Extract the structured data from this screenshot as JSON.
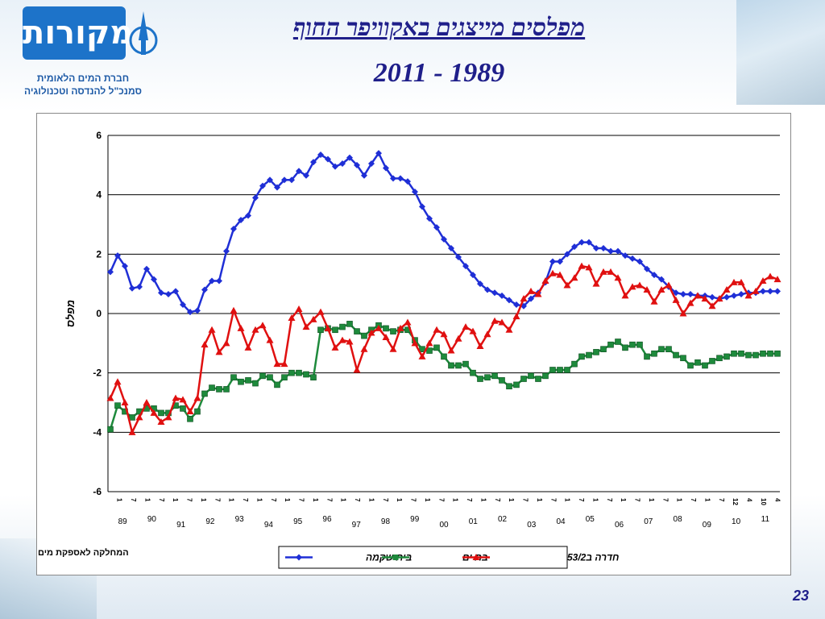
{
  "logo": {
    "name": "מקורות",
    "subtitle_line1": "חברת המים הלאומית",
    "subtitle_line2": "סמנכ\"ל להנדסה וטכנולוגיה"
  },
  "slide": {
    "title": "מפלסים מייצגים באקוויפר החוף",
    "years": "2011 - 1989",
    "department": "המחלקה לאספקת מים",
    "page_number": "23"
  },
  "chart_data": {
    "type": "line",
    "ylabel": "מפלס",
    "ylim": [
      -6,
      6
    ],
    "yticks": [
      "6",
      "4",
      "2",
      "0",
      "-2",
      "-4",
      "-6"
    ],
    "ytick_values": [
      6,
      4,
      2,
      0,
      -2,
      -4,
      -6
    ],
    "grid": true,
    "legend_position": "bottom",
    "x_tick_labels": [
      "1",
      "7",
      "1",
      "7",
      "1",
      "7",
      "1",
      "7",
      "1",
      "7",
      "1",
      "7",
      "1",
      "7",
      "1",
      "7",
      "1",
      "7",
      "1",
      "7",
      "1",
      "7",
      "1",
      "7",
      "1",
      "7",
      "1",
      "7",
      "1",
      "7",
      "1",
      "7",
      "1",
      "7",
      "1",
      "7",
      "1",
      "7",
      "1",
      "7",
      "1",
      "7",
      "1",
      "7",
      "12",
      "4",
      "10",
      "4"
    ],
    "year_labels": [
      "89",
      "90",
      "91",
      "92",
      "93",
      "94",
      "95",
      "96",
      "97",
      "98",
      "99",
      "00",
      "01",
      "02",
      "03",
      "04",
      "05",
      "06",
      "07",
      "08",
      "09",
      "10",
      "11"
    ],
    "series": [
      {
        "name": "בית שקמה",
        "color": "#1f2fd6",
        "marker": "diamond",
        "values": [
          1.4,
          1.95,
          1.6,
          0.85,
          0.9,
          1.5,
          1.15,
          0.7,
          0.65,
          0.75,
          0.3,
          0.05,
          0.1,
          0.8,
          1.1,
          1.1,
          2.1,
          2.85,
          3.15,
          3.3,
          3.9,
          4.3,
          4.5,
          4.25,
          4.5,
          4.5,
          4.8,
          4.65,
          5.1,
          5.35,
          5.2,
          4.95,
          5.05,
          5.25,
          5.0,
          4.65,
          5.05,
          5.4,
          4.9,
          4.55,
          4.55,
          4.45,
          4.1,
          3.6,
          3.2,
          2.9,
          2.5,
          2.2,
          1.9,
          1.6,
          1.3,
          1.0,
          0.8,
          0.7,
          0.6,
          0.45,
          0.3,
          0.25,
          0.5,
          0.7,
          1.05,
          1.75,
          1.75,
          2.0,
          2.25,
          2.4,
          2.4,
          2.2,
          2.2,
          2.1,
          2.1,
          1.95,
          1.85,
          1.75,
          1.5,
          1.3,
          1.15,
          0.9,
          0.7,
          0.65,
          0.65,
          0.6,
          0.6,
          0.55,
          0.5,
          0.55,
          0.6,
          0.65,
          0.7,
          0.7,
          0.75,
          0.75,
          0.75
        ]
      },
      {
        "name": "בת ים",
        "color": "#1e8a3c",
        "marker": "square",
        "values": [
          -3.9,
          -3.1,
          -3.3,
          -3.5,
          -3.3,
          -3.2,
          -3.2,
          -3.35,
          -3.35,
          -3.1,
          -3.2,
          -3.55,
          -3.3,
          -2.7,
          -2.5,
          -2.55,
          -2.55,
          -2.15,
          -2.3,
          -2.25,
          -2.35,
          -2.1,
          -2.15,
          -2.4,
          -2.15,
          -2.0,
          -2.0,
          -2.05,
          -2.15,
          -0.55,
          -0.5,
          -0.55,
          -0.45,
          -0.35,
          -0.6,
          -0.75,
          -0.55,
          -0.4,
          -0.5,
          -0.6,
          -0.55,
          -0.55,
          -0.9,
          -1.2,
          -1.25,
          -1.15,
          -1.45,
          -1.75,
          -1.75,
          -1.7,
          -2.0,
          -2.2,
          -2.15,
          -2.1,
          -2.25,
          -2.45,
          -2.4,
          -2.2,
          -2.1,
          -2.2,
          -2.1,
          -1.9,
          -1.9,
          -1.9,
          -1.7,
          -1.45,
          -1.4,
          -1.3,
          -1.2,
          -1.05,
          -0.95,
          -1.15,
          -1.05,
          -1.05,
          -1.45,
          -1.35,
          -1.2,
          -1.2,
          -1.4,
          -1.5,
          -1.75,
          -1.65,
          -1.75,
          -1.6,
          -1.5,
          -1.45,
          -1.35,
          -1.35,
          -1.4,
          -1.4,
          -1.35,
          -1.35,
          -1.35
        ]
      },
      {
        "name": "חדרה ב53/2",
        "color": "#e01010",
        "marker": "triangle",
        "values": [
          -2.85,
          -2.3,
          -3.0,
          -4.0,
          -3.5,
          -3.0,
          -3.35,
          -3.65,
          -3.5,
          -2.85,
          -2.9,
          -3.3,
          -2.85,
          -1.05,
          -0.55,
          -1.3,
          -1.0,
          0.1,
          -0.5,
          -1.15,
          -0.55,
          -0.4,
          -0.9,
          -1.7,
          -1.7,
          -0.15,
          0.15,
          -0.45,
          -0.2,
          0.05,
          -0.5,
          -1.15,
          -0.9,
          -0.95,
          -1.9,
          -1.2,
          -0.65,
          -0.5,
          -0.8,
          -1.2,
          -0.5,
          -0.3,
          -1.0,
          -1.45,
          -1.0,
          -0.55,
          -0.7,
          -1.25,
          -0.85,
          -0.45,
          -0.6,
          -1.1,
          -0.7,
          -0.25,
          -0.3,
          -0.55,
          -0.1,
          0.5,
          0.75,
          0.65,
          1.1,
          1.35,
          1.3,
          0.95,
          1.2,
          1.6,
          1.55,
          1.0,
          1.4,
          1.4,
          1.2,
          0.6,
          0.9,
          0.95,
          0.8,
          0.4,
          0.8,
          0.95,
          0.45,
          0.0,
          0.35,
          0.6,
          0.5,
          0.25,
          0.5,
          0.8,
          1.05,
          1.05,
          0.6,
          0.75,
          1.1,
          1.25,
          1.15
        ]
      }
    ]
  }
}
